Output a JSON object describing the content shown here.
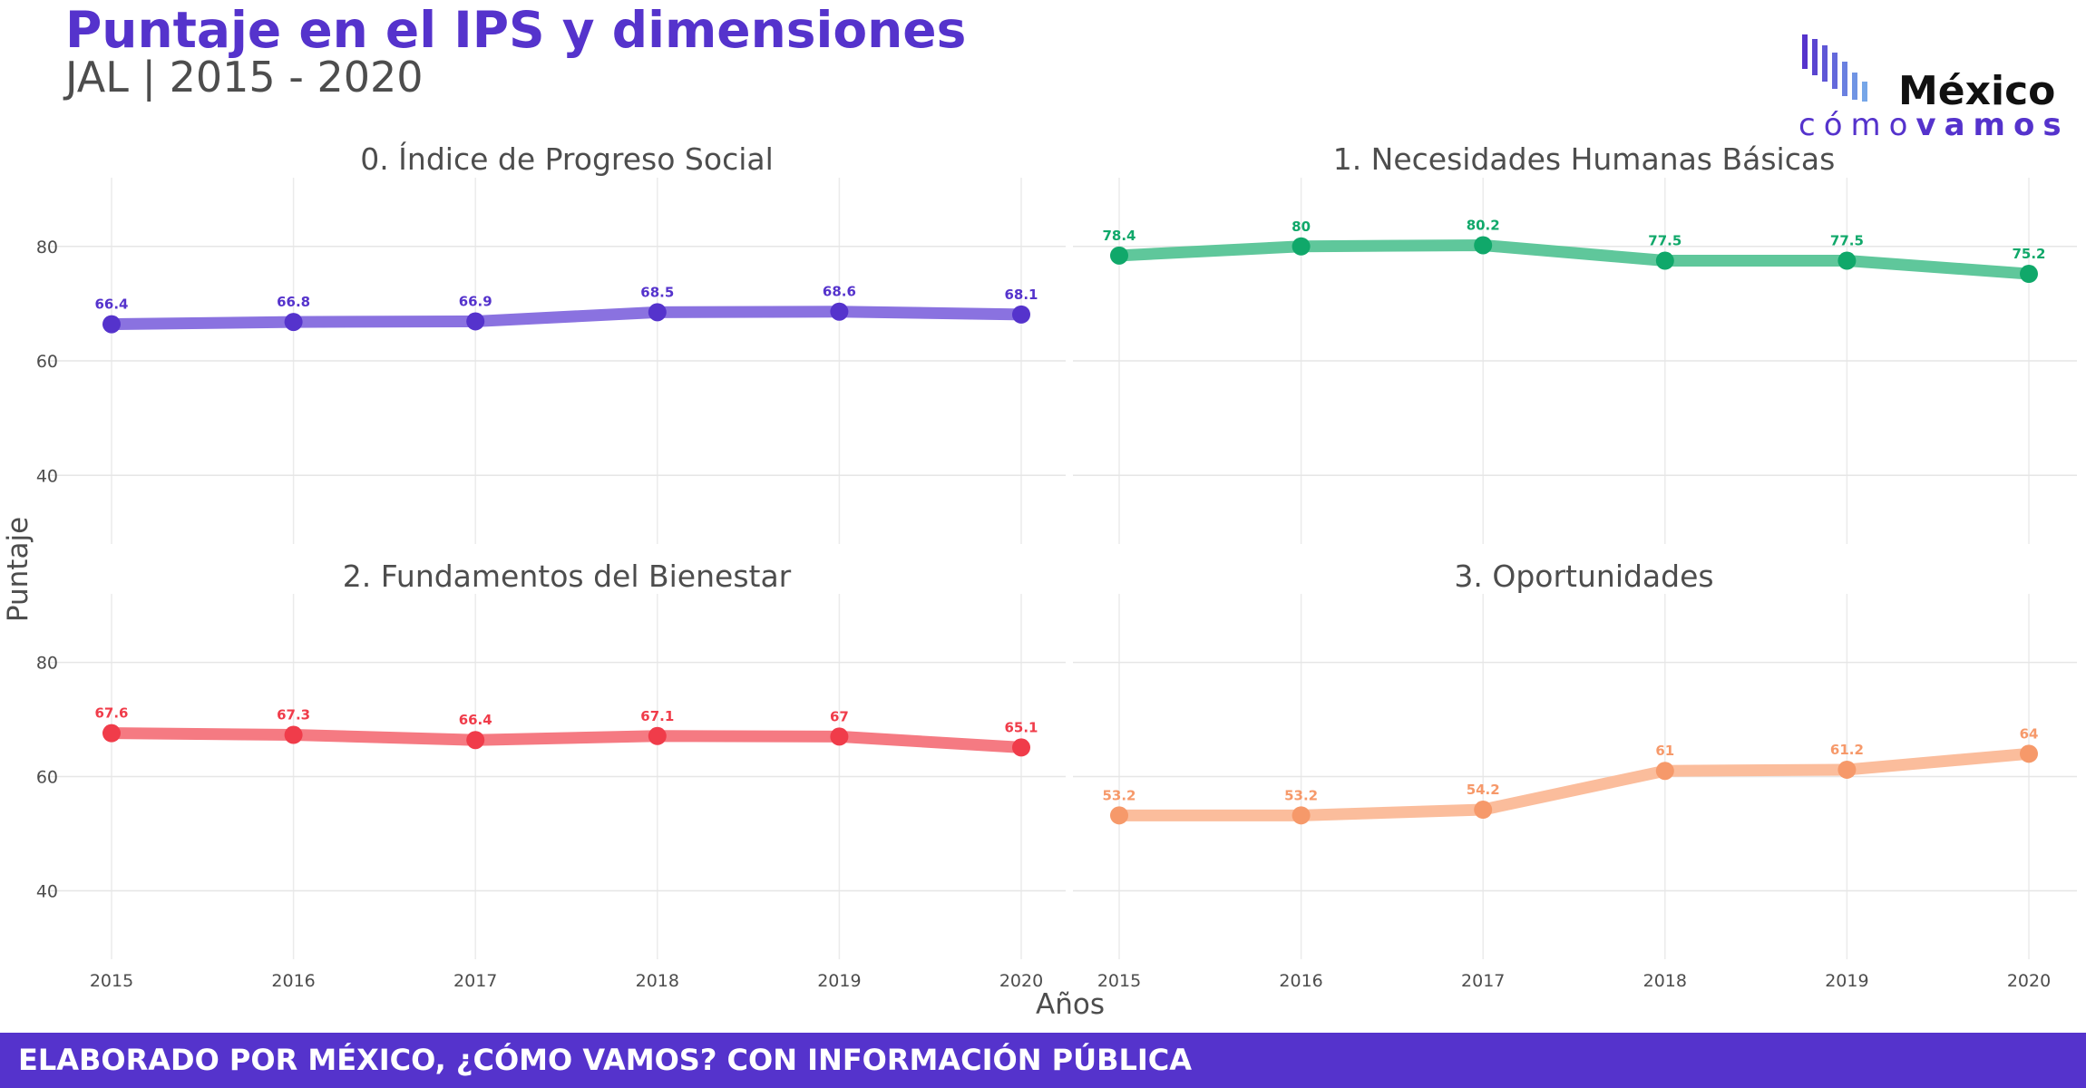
{
  "header": {
    "title": "Puntaje en el IPS y dimensiones",
    "subtitle": "JAL | 2015 - 2020"
  },
  "logo": {
    "name": "México",
    "tagline_light": "cómo",
    "tagline_bold": "vamos"
  },
  "footer": {
    "text": "ELABORADO POR MÉXICO, ¿CÓMO VAMOS? CON INFORMACIÓN PÚBLICA"
  },
  "colors": {
    "brand": "#5533cc"
  },
  "chart_data": {
    "type": "line",
    "layout": "facet-2x2",
    "xlabel": "Años",
    "ylabel": "Puntaje",
    "x": [
      2015,
      2016,
      2017,
      2018,
      2019,
      2020
    ],
    "ylim": [
      28,
      92
    ],
    "yticks": [
      40,
      60,
      80
    ],
    "grid": true,
    "panels": [
      {
        "title": "0. Índice de Progreso Social",
        "values": [
          66.4,
          66.8,
          66.9,
          68.5,
          68.6,
          68.1
        ],
        "labels": [
          "66.4",
          "66.8",
          "66.9",
          "68.5",
          "68.6",
          "68.1"
        ],
        "color": "#5533cc",
        "line_color": "#8a72e0"
      },
      {
        "title": "1. Necesidades Humanas Básicas",
        "values": [
          78.4,
          80,
          80.2,
          77.5,
          77.5,
          75.2
        ],
        "labels": [
          "78.4",
          "80",
          "80.2",
          "77.5",
          "77.5",
          "75.2"
        ],
        "color": "#10a86a",
        "line_color": "#5fc79b"
      },
      {
        "title": "2. Fundamentos del Bienestar",
        "values": [
          67.6,
          67.3,
          66.4,
          67.1,
          67,
          65.1
        ],
        "labels": [
          "67.6",
          "67.3",
          "66.4",
          "67.1",
          "67",
          "65.1"
        ],
        "color": "#f03c4a",
        "line_color": "#f57a82"
      },
      {
        "title": "3. Oportunidades",
        "values": [
          53.2,
          53.2,
          54.2,
          61,
          61.2,
          64
        ],
        "labels": [
          "53.2",
          "53.2",
          "54.2",
          "61",
          "61.2",
          "64"
        ],
        "color": "#f6996a",
        "line_color": "#fbbd9c"
      }
    ]
  }
}
